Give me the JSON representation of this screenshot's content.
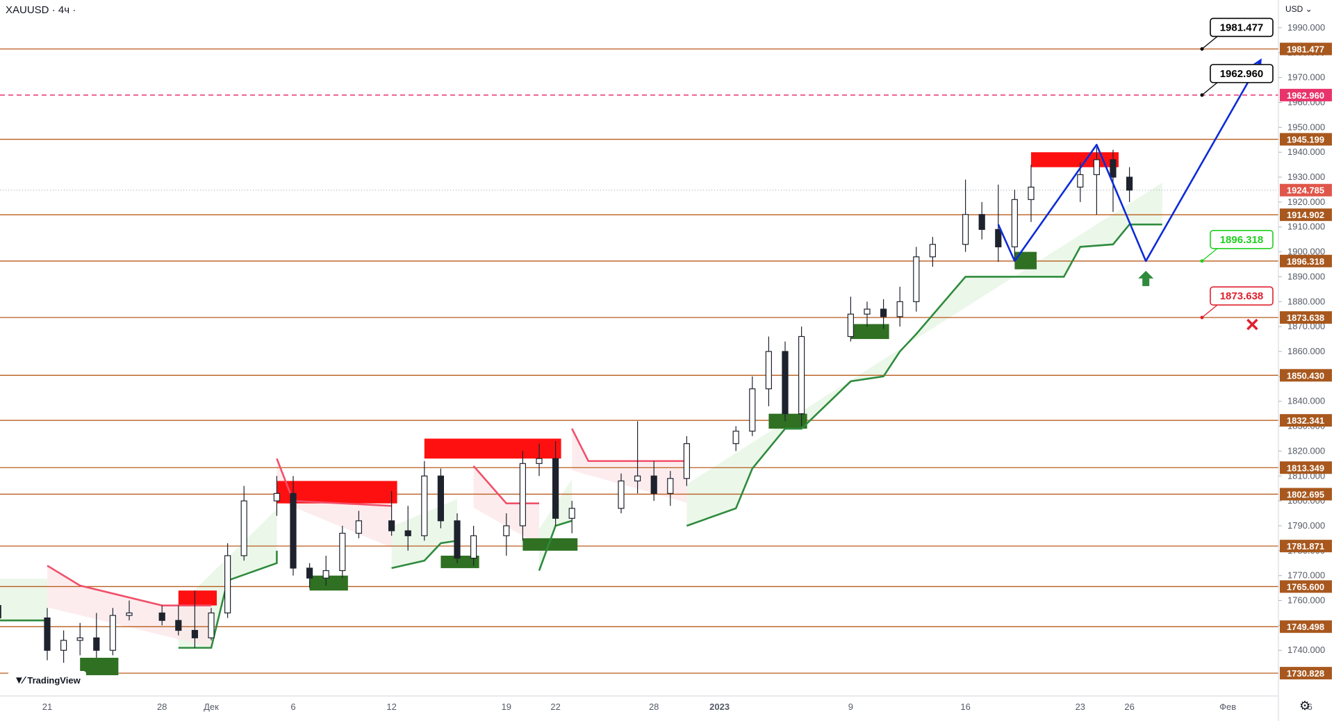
{
  "header": {
    "symbol": "XAUUSD",
    "timeframe": "4ч"
  },
  "currency": "USD",
  "logo": {
    "text": "TradingView"
  },
  "colors": {
    "level_line": "#b85c1c",
    "level_label_bg": "#a8581e",
    "dashed_level": "#e8336b",
    "current_price_bg": "#e0564a",
    "supertrend_up": "#2e8b3d",
    "supertrend_down": "#f0506a",
    "projection": "#0c2bd9",
    "supply_zone": "#ff1010",
    "demand_zone": "#2f7022",
    "candle": "#1e222d"
  },
  "icons": {
    "buy_marker": "up-arrow-icon",
    "stop_marker": "cross-icon",
    "settings": "gear-icon"
  },
  "chart_data": {
    "type": "candlestick",
    "ylim": [
      1725,
      1995
    ],
    "yticks": [
      1740,
      1750,
      1760,
      1770,
      1780,
      1790,
      1800,
      1810,
      1820,
      1830,
      1840,
      1850,
      1860,
      1870,
      1880,
      1890,
      1900,
      1910,
      1920,
      1930,
      1940,
      1950,
      1960,
      1970,
      1980,
      1990
    ],
    "x_labels": [
      {
        "label": "21",
        "date": "2022-11-21"
      },
      {
        "label": "28",
        "date": "2022-11-28"
      },
      {
        "label": "Дек",
        "date": "2022-12-01"
      },
      {
        "label": "6",
        "date": "2022-12-06"
      },
      {
        "label": "12",
        "date": "2022-12-12"
      },
      {
        "label": "19",
        "date": "2022-12-19"
      },
      {
        "label": "22",
        "date": "2022-12-22"
      },
      {
        "label": "28",
        "date": "2022-12-28"
      },
      {
        "label": "2023",
        "date": "2023-01-01"
      },
      {
        "label": "9",
        "date": "2023-01-09"
      },
      {
        "label": "16",
        "date": "2023-01-16"
      },
      {
        "label": "23",
        "date": "2023-01-23"
      },
      {
        "label": "26",
        "date": "2023-01-26"
      },
      {
        "label": "Фев",
        "date": "2023-02-01"
      },
      {
        "label": "6",
        "date": "2023-02-06"
      }
    ],
    "levels": [
      {
        "value": "1981.477",
        "style": "solid"
      },
      {
        "value": "1962.960",
        "style": "dashed"
      },
      {
        "value": "1945.199",
        "style": "solid"
      },
      {
        "value": "1914.902",
        "style": "solid"
      },
      {
        "value": "1896.318",
        "style": "solid"
      },
      {
        "value": "1873.638",
        "style": "solid"
      },
      {
        "value": "1850.430",
        "style": "solid"
      },
      {
        "value": "1832.341",
        "style": "solid"
      },
      {
        "value": "1813.349",
        "style": "solid"
      },
      {
        "value": "1802.695",
        "style": "solid"
      },
      {
        "value": "1781.871",
        "style": "solid"
      },
      {
        "value": "1765.600",
        "style": "solid"
      },
      {
        "value": "1749.498",
        "style": "solid"
      },
      {
        "value": "1730.828",
        "style": "solid"
      }
    ],
    "current_price": "1924.785",
    "callouts": [
      {
        "value": "1981.477",
        "color": "#000000"
      },
      {
        "value": "1962.960",
        "color": "#000000"
      },
      {
        "value": "1896.318",
        "color": "#1ecf1e"
      },
      {
        "value": "1873.638",
        "color": "#e0202e"
      }
    ],
    "projection_path": [
      {
        "date": "2023-01-19",
        "price": 1896.3
      },
      {
        "date": "2023-01-24",
        "price": 1943.0
      },
      {
        "date": "2023-01-27",
        "price": 1896.3
      },
      {
        "date": "2023-02-03",
        "price": 1977.0
      }
    ],
    "projection_intro": [
      {
        "date": "2023-01-18",
        "price": 1911.0
      },
      {
        "date": "2023-01-19",
        "price": 1896.3
      }
    ],
    "supply_zones": [
      {
        "from": "2022-11-29",
        "to": "2022-12-01",
        "high": 1764,
        "low": 1758
      },
      {
        "from": "2022-12-05",
        "to": "2022-12-12",
        "high": 1808,
        "low": 1799
      },
      {
        "from": "2022-12-14",
        "to": "2022-12-22",
        "high": 1825,
        "low": 1817
      },
      {
        "from": "2023-01-20",
        "to": "2023-01-25",
        "high": 1940,
        "low": 1934
      }
    ],
    "demand_zones": [
      {
        "from": "2022-11-23",
        "to": "2022-11-25",
        "high": 1737,
        "low": 1730
      },
      {
        "from": "2022-12-07",
        "to": "2022-12-09",
        "high": 1770,
        "low": 1764
      },
      {
        "from": "2022-12-15",
        "to": "2022-12-17",
        "high": 1778,
        "low": 1773
      },
      {
        "from": "2022-12-20",
        "to": "2022-12-23",
        "high": 1785,
        "low": 1780
      },
      {
        "from": "2023-01-04",
        "to": "2023-01-06",
        "high": 1835,
        "low": 1829
      },
      {
        "from": "2023-01-09",
        "to": "2023-01-11",
        "high": 1871,
        "low": 1865
      },
      {
        "from": "2023-01-19",
        "to": "2023-01-20",
        "high": 1900,
        "low": 1893
      }
    ],
    "supertrend_up": [
      [
        {
          "date": "2022-11-16",
          "price": 1752
        },
        {
          "date": "2022-11-21",
          "price": 1752
        }
      ],
      [
        {
          "date": "2022-11-29",
          "price": 1741
        },
        {
          "date": "2022-12-01",
          "price": 1741
        },
        {
          "date": "2022-12-02",
          "price": 1768
        },
        {
          "date": "2022-12-05",
          "price": 1775
        },
        {
          "date": "2022-12-05",
          "price": 1780
        }
      ],
      [
        {
          "date": "2022-12-12",
          "price": 1773
        },
        {
          "date": "2022-12-14",
          "price": 1776
        },
        {
          "date": "2022-12-15",
          "price": 1783
        },
        {
          "date": "2022-12-16",
          "price": 1784
        }
      ],
      [
        {
          "date": "2022-12-21",
          "price": 1772
        },
        {
          "date": "2022-12-22",
          "price": 1790
        },
        {
          "date": "2022-12-23",
          "price": 1792
        }
      ],
      [
        {
          "date": "2022-12-30",
          "price": 1790
        },
        {
          "date": "2023-01-02",
          "price": 1797
        },
        {
          "date": "2023-01-03",
          "price": 1813
        },
        {
          "date": "2023-01-05",
          "price": 1829
        },
        {
          "date": "2023-01-06",
          "price": 1829
        },
        {
          "date": "2023-01-09",
          "price": 1848
        },
        {
          "date": "2023-01-11",
          "price": 1850
        },
        {
          "date": "2023-01-12",
          "price": 1860
        },
        {
          "date": "2023-01-13",
          "price": 1867
        },
        {
          "date": "2023-01-16",
          "price": 1890
        },
        {
          "date": "2023-01-22",
          "price": 1890
        },
        {
          "date": "2023-01-23",
          "price": 1902
        },
        {
          "date": "2023-01-25",
          "price": 1903
        },
        {
          "date": "2023-01-26",
          "price": 1911
        },
        {
          "date": "2023-01-28",
          "price": 1911
        }
      ]
    ],
    "supertrend_down": [
      [
        {
          "date": "2022-11-21",
          "price": 1774
        },
        {
          "date": "2022-11-23",
          "price": 1766
        },
        {
          "date": "2022-11-28",
          "price": 1758
        },
        {
          "date": "2022-12-01",
          "price": 1758
        }
      ],
      [
        {
          "date": "2022-12-05",
          "price": 1817
        },
        {
          "date": "2022-12-06",
          "price": 1800
        },
        {
          "date": "2022-12-12",
          "price": 1798
        }
      ],
      [
        {
          "date": "2022-12-17",
          "price": 1814
        },
        {
          "date": "2022-12-19",
          "price": 1799
        },
        {
          "date": "2022-12-21",
          "price": 1799
        }
      ],
      [
        {
          "date": "2022-12-23",
          "price": 1829
        },
        {
          "date": "2022-12-24",
          "price": 1816
        },
        {
          "date": "2022-12-30",
          "price": 1816
        }
      ]
    ],
    "candles": [
      {
        "date": "2022-11-16",
        "open": 1774,
        "high": 1776,
        "low": 1760,
        "close": 1765
      },
      {
        "date": "2022-11-17",
        "open": 1765,
        "high": 1768,
        "low": 1752,
        "close": 1758
      },
      {
        "date": "2022-11-18",
        "open": 1758,
        "high": 1766,
        "low": 1751,
        "close": 1753
      },
      {
        "date": "2022-11-21",
        "open": 1753,
        "high": 1757,
        "low": 1736,
        "close": 1740
      },
      {
        "date": "2022-11-22",
        "open": 1740,
        "high": 1748,
        "low": 1735,
        "close": 1744
      },
      {
        "date": "2022-11-23",
        "open": 1744,
        "high": 1751,
        "low": 1738,
        "close": 1745
      },
      {
        "date": "2022-11-24",
        "open": 1745,
        "high": 1755,
        "low": 1737,
        "close": 1740
      },
      {
        "date": "2022-11-25",
        "open": 1740,
        "high": 1757,
        "low": 1738,
        "close": 1754
      },
      {
        "date": "2022-11-26",
        "open": 1754,
        "high": 1760,
        "low": 1752,
        "close": 1755
      },
      {
        "date": "2022-11-28",
        "open": 1755,
        "high": 1758,
        "low": 1750,
        "close": 1752
      },
      {
        "date": "2022-11-29",
        "open": 1752,
        "high": 1758,
        "low": 1746,
        "close": 1748
      },
      {
        "date": "2022-11-30",
        "open": 1748,
        "high": 1764,
        "low": 1741,
        "close": 1745
      },
      {
        "date": "2022-12-01",
        "open": 1745,
        "high": 1757,
        "low": 1744,
        "close": 1755
      },
      {
        "date": "2022-12-02",
        "open": 1755,
        "high": 1783,
        "low": 1753,
        "close": 1778
      },
      {
        "date": "2022-12-03",
        "open": 1778,
        "high": 1806,
        "low": 1776,
        "close": 1800
      },
      {
        "date": "2022-12-05",
        "open": 1800,
        "high": 1810,
        "low": 1794,
        "close": 1803
      },
      {
        "date": "2022-12-06",
        "open": 1803,
        "high": 1810,
        "low": 1770,
        "close": 1773
      },
      {
        "date": "2022-12-07",
        "open": 1773,
        "high": 1775,
        "low": 1765,
        "close": 1769
      },
      {
        "date": "2022-12-08",
        "open": 1769,
        "high": 1778,
        "low": 1766,
        "close": 1772
      },
      {
        "date": "2022-12-09",
        "open": 1772,
        "high": 1790,
        "low": 1769,
        "close": 1787
      },
      {
        "date": "2022-12-10",
        "open": 1787,
        "high": 1796,
        "low": 1785,
        "close": 1792
      },
      {
        "date": "2022-12-12",
        "open": 1792,
        "high": 1804,
        "low": 1786,
        "close": 1788
      },
      {
        "date": "2022-12-13",
        "open": 1788,
        "high": 1798,
        "low": 1780,
        "close": 1786
      },
      {
        "date": "2022-12-14",
        "open": 1786,
        "high": 1816,
        "low": 1784,
        "close": 1810
      },
      {
        "date": "2022-12-15",
        "open": 1810,
        "high": 1813,
        "low": 1789,
        "close": 1792
      },
      {
        "date": "2022-12-16",
        "open": 1792,
        "high": 1795,
        "low": 1775,
        "close": 1777
      },
      {
        "date": "2022-12-17",
        "open": 1777,
        "high": 1790,
        "low": 1774,
        "close": 1786
      },
      {
        "date": "2022-12-19",
        "open": 1786,
        "high": 1795,
        "low": 1778,
        "close": 1790
      },
      {
        "date": "2022-12-20",
        "open": 1790,
        "high": 1820,
        "low": 1784,
        "close": 1815
      },
      {
        "date": "2022-12-21",
        "open": 1815,
        "high": 1823,
        "low": 1810,
        "close": 1817
      },
      {
        "date": "2022-12-22",
        "open": 1817,
        "high": 1824,
        "low": 1790,
        "close": 1793
      },
      {
        "date": "2022-12-23",
        "open": 1793,
        "high": 1800,
        "low": 1787,
        "close": 1797
      },
      {
        "date": "2022-12-26",
        "open": 1797,
        "high": 1811,
        "low": 1795,
        "close": 1808
      },
      {
        "date": "2022-12-27",
        "open": 1808,
        "high": 1832,
        "low": 1803,
        "close": 1810
      },
      {
        "date": "2022-12-28",
        "open": 1810,
        "high": 1816,
        "low": 1800,
        "close": 1803
      },
      {
        "date": "2022-12-29",
        "open": 1803,
        "high": 1812,
        "low": 1798,
        "close": 1809
      },
      {
        "date": "2022-12-30",
        "open": 1809,
        "high": 1826,
        "low": 1806,
        "close": 1823
      },
      {
        "date": "2023-01-02",
        "open": 1823,
        "high": 1830,
        "low": 1820,
        "close": 1828
      },
      {
        "date": "2023-01-03",
        "open": 1828,
        "high": 1850,
        "low": 1826,
        "close": 1845
      },
      {
        "date": "2023-01-04",
        "open": 1845,
        "high": 1866,
        "low": 1838,
        "close": 1860
      },
      {
        "date": "2023-01-05",
        "open": 1860,
        "high": 1864,
        "low": 1832,
        "close": 1835
      },
      {
        "date": "2023-01-06",
        "open": 1835,
        "high": 1870,
        "low": 1830,
        "close": 1866
      },
      {
        "date": "2023-01-09",
        "open": 1866,
        "high": 1882,
        "low": 1864,
        "close": 1875
      },
      {
        "date": "2023-01-10",
        "open": 1875,
        "high": 1880,
        "low": 1870,
        "close": 1877
      },
      {
        "date": "2023-01-11",
        "open": 1877,
        "high": 1881,
        "low": 1869,
        "close": 1874
      },
      {
        "date": "2023-01-12",
        "open": 1874,
        "high": 1886,
        "low": 1870,
        "close": 1880
      },
      {
        "date": "2023-01-13",
        "open": 1880,
        "high": 1902,
        "low": 1876,
        "close": 1898
      },
      {
        "date": "2023-01-14",
        "open": 1898,
        "high": 1906,
        "low": 1894,
        "close": 1903
      },
      {
        "date": "2023-01-16",
        "open": 1903,
        "high": 1929,
        "low": 1900,
        "close": 1915
      },
      {
        "date": "2023-01-17",
        "open": 1915,
        "high": 1920,
        "low": 1905,
        "close": 1909
      },
      {
        "date": "2023-01-18",
        "open": 1909,
        "high": 1927,
        "low": 1896,
        "close": 1902
      },
      {
        "date": "2023-01-19",
        "open": 1902,
        "high": 1925,
        "low": 1896,
        "close": 1921
      },
      {
        "date": "2023-01-20",
        "open": 1921,
        "high": 1935,
        "low": 1912,
        "close": 1926
      },
      {
        "date": "2023-01-23",
        "open": 1926,
        "high": 1936,
        "low": 1920,
        "close": 1931
      },
      {
        "date": "2023-01-24",
        "open": 1931,
        "high": 1942,
        "low": 1915,
        "close": 1937
      },
      {
        "date": "2023-01-25",
        "open": 1937,
        "high": 1941,
        "low": 1916,
        "close": 1930
      },
      {
        "date": "2023-01-26",
        "open": 1930,
        "high": 1934,
        "low": 1920,
        "close": 1924.785
      }
    ]
  }
}
